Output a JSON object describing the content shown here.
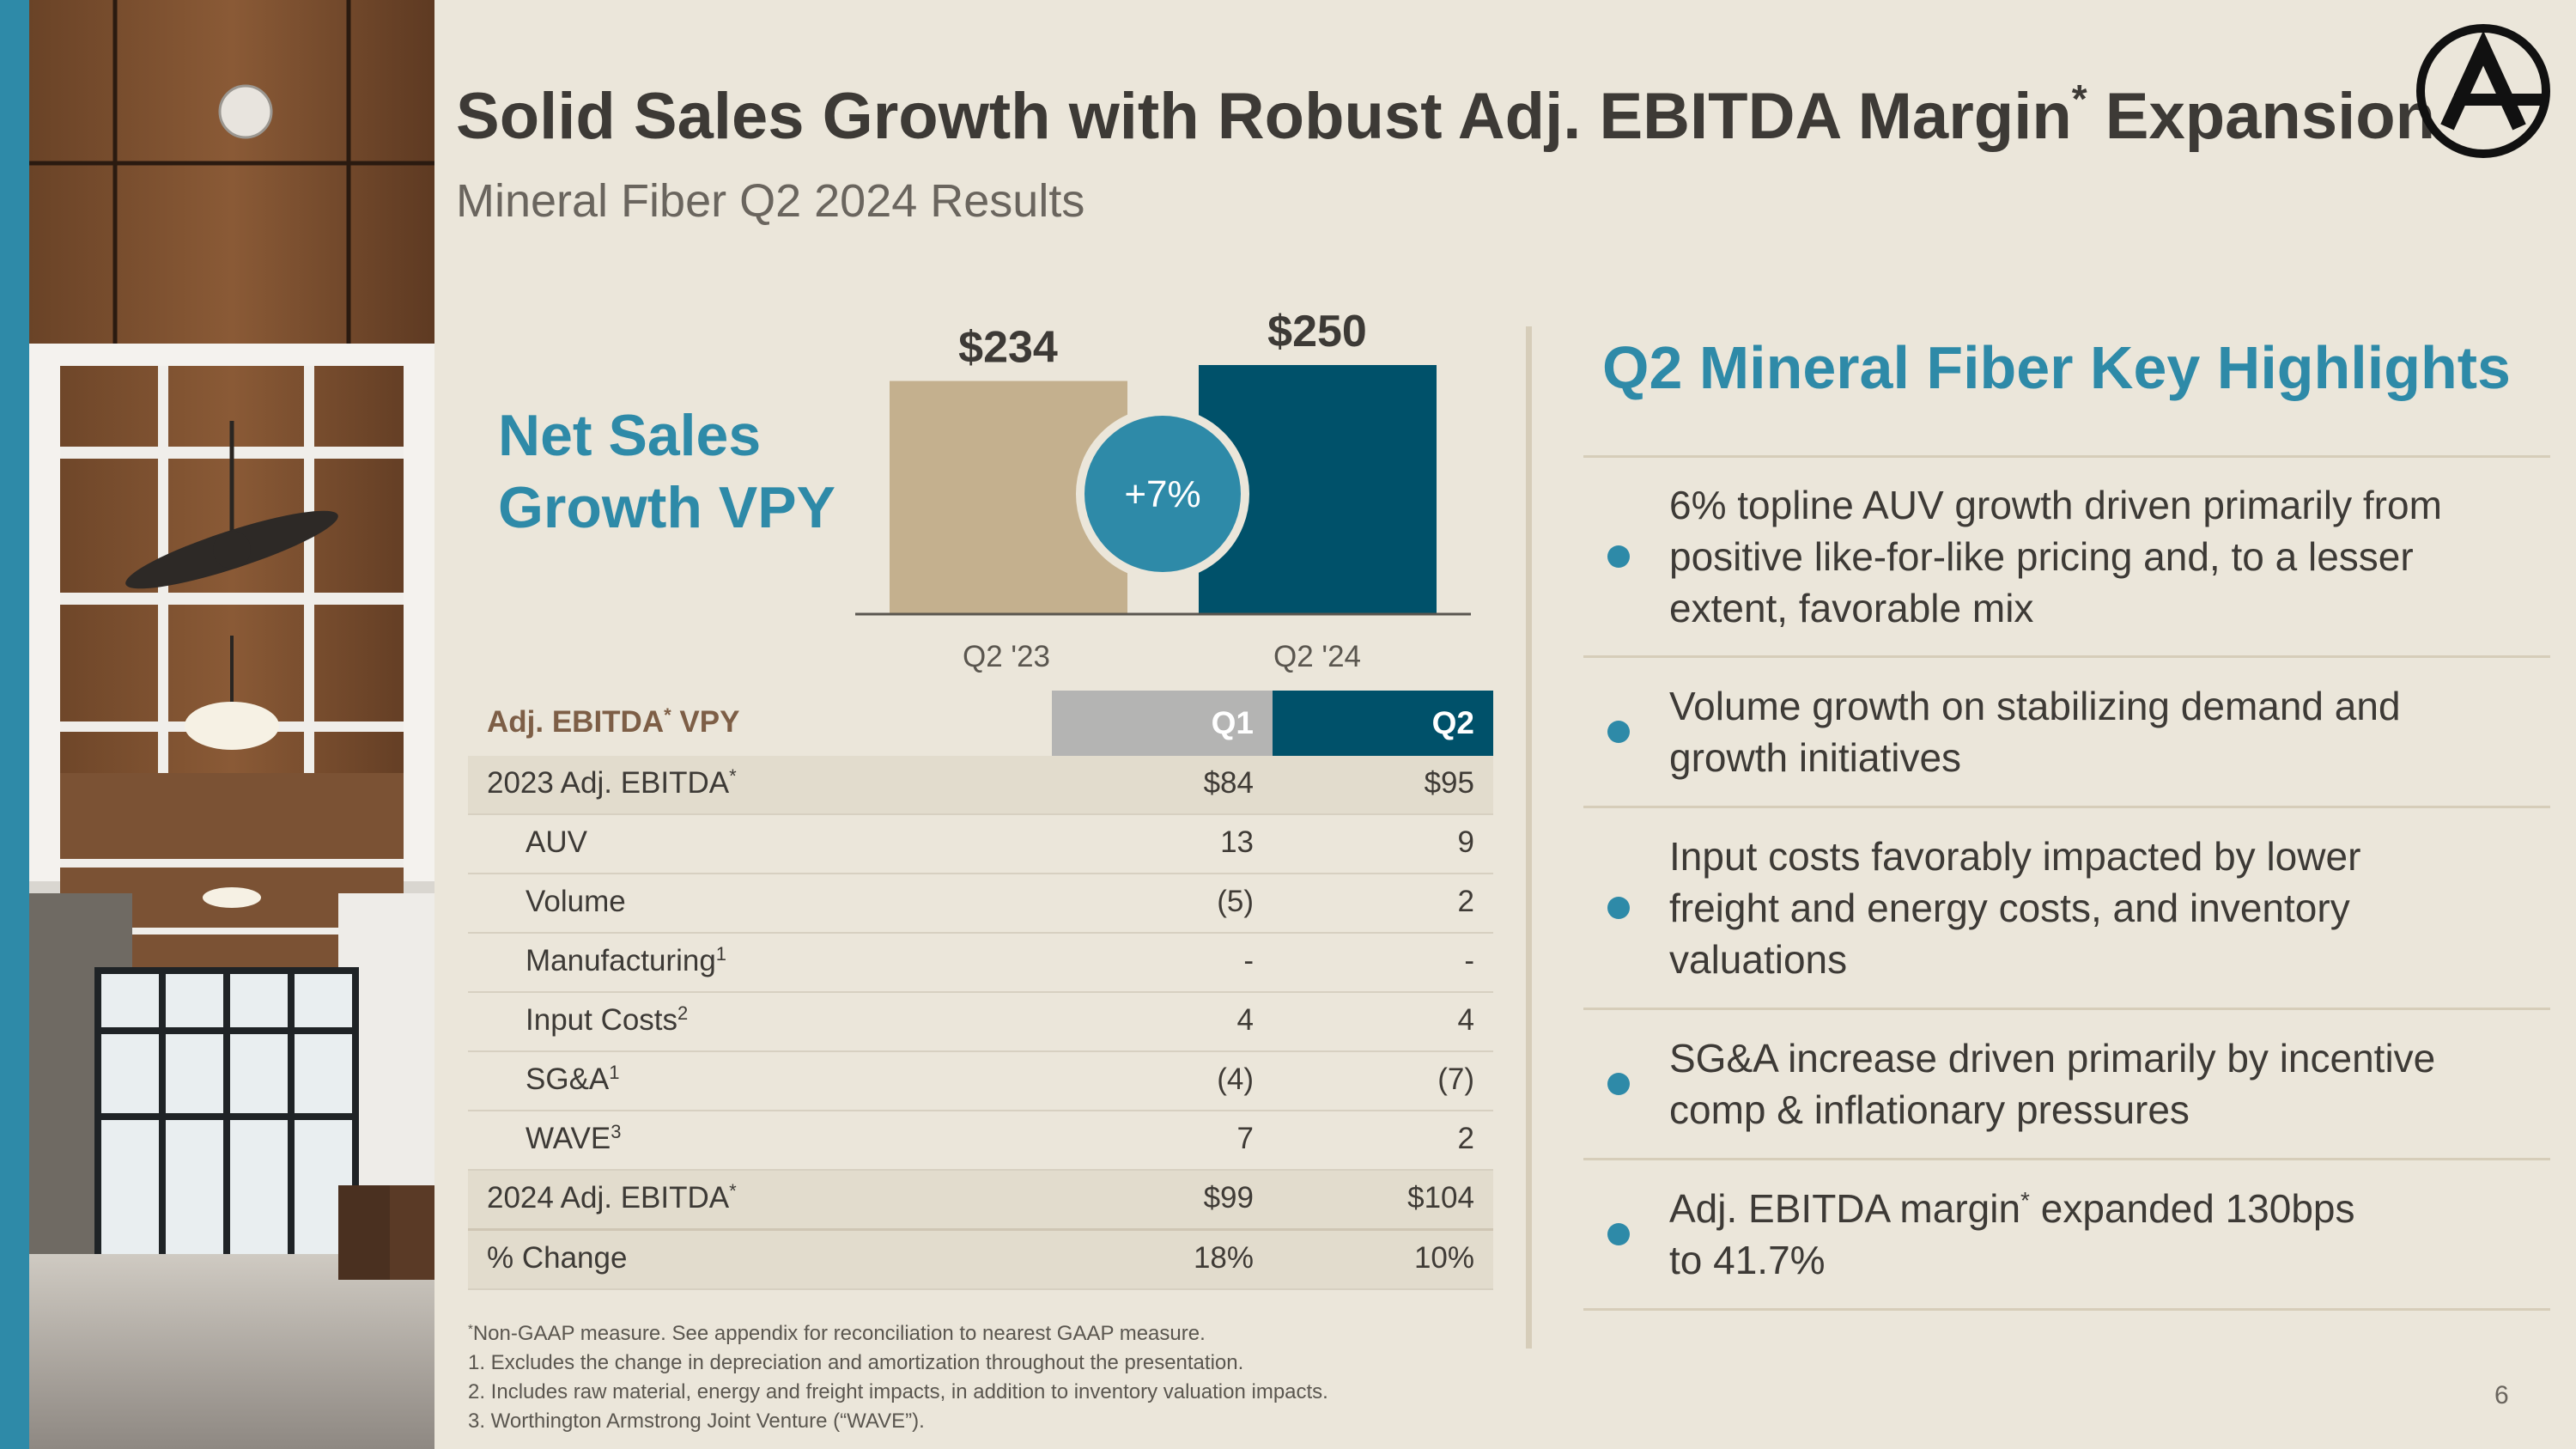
{
  "title": {
    "main": "Solid Sales Growth with Robust Adj. EBITDA Margin",
    "sup": "*",
    "tail": " Expansion"
  },
  "subtitle": "Mineral Fiber Q2 2024 Results",
  "net_sales_label": {
    "line1": "Net Sales",
    "line2": "Growth VPY"
  },
  "chart_data": {
    "type": "bar",
    "title": "Net Sales Growth VPY",
    "categories": [
      "Q2 '23",
      "Q2 '24"
    ],
    "values": [
      234,
      250
    ],
    "value_labels": [
      "$234",
      "$250"
    ],
    "colors": [
      "#c4b08e",
      "#00516a"
    ],
    "growth_badge": "+7%",
    "ylim": [
      0,
      250
    ]
  },
  "table": {
    "header": {
      "label": "Adj. EBITDA",
      "label_sup": "*",
      "label_tail": " VPY",
      "col1": "Q1",
      "col2": "Q2"
    },
    "rows": [
      {
        "label": "2023 Adj. EBITDA",
        "sup": "*",
        "q1": "$84",
        "q2": "$95",
        "indent": false,
        "shade": true
      },
      {
        "label": "AUV",
        "sup": "",
        "q1": "13",
        "q2": "9",
        "indent": true,
        "shade": false
      },
      {
        "label": "Volume",
        "sup": "",
        "q1": "(5)",
        "q2": "2",
        "indent": true,
        "shade": false
      },
      {
        "label": "Manufacturing",
        "sup": "1",
        "q1": "-",
        "q2": "-",
        "indent": true,
        "shade": false
      },
      {
        "label": "Input Costs",
        "sup": "2",
        "q1": "4",
        "q2": "4",
        "indent": true,
        "shade": false
      },
      {
        "label": "SG&A",
        "sup": "1",
        "q1": "(4)",
        "q2": "(7)",
        "indent": true,
        "shade": false
      },
      {
        "label": "WAVE",
        "sup": "3",
        "q1": "7",
        "q2": "2",
        "indent": true,
        "shade": false
      },
      {
        "label": "2024 Adj. EBITDA",
        "sup": "*",
        "q1": "$99",
        "q2": "$104",
        "indent": false,
        "shade": true
      },
      {
        "label": "% Change",
        "sup": "",
        "q1": "18%",
        "q2": "10%",
        "indent": false,
        "shade": true
      }
    ]
  },
  "footnotes": {
    "star_sup": "*",
    "star": "Non-GAAP measure. See appendix for reconciliation to nearest GAAP measure.",
    "n1": "1. Excludes the change in depreciation and amortization throughout the presentation.",
    "n2": "2. Includes raw material, energy and freight impacts, in addition to inventory valuation impacts.",
    "n3": "3. Worthington Armstrong Joint Venture (“WAVE”)."
  },
  "highlights": {
    "title": "Q2 Mineral Fiber Key Highlights",
    "items": [
      {
        "line1": "6% topline AUV growth driven primarily from",
        "line2": "positive like-for-like pricing and, to a lesser",
        "line3": "extent, favorable mix"
      },
      {
        "line1": "Volume growth on stabilizing demand and",
        "line2": "growth initiatives"
      },
      {
        "line1": "Input costs favorably impacted by lower",
        "line2": "freight and energy costs, and inventory",
        "line3": "valuations"
      },
      {
        "line1": "SG&A increase driven primarily by incentive",
        "line2": "comp & inflationary pressures"
      },
      {
        "line1a": "Adj. EBITDA margin",
        "line1_sup": "*",
        "line1b": " expanded 130bps",
        "line2": "to 41.7%"
      }
    ]
  },
  "page_number": "6",
  "colors": {
    "accent": "#2e8aa8",
    "navy": "#00516a",
    "tan": "#c4b08e",
    "brown": "#7d5e46"
  }
}
